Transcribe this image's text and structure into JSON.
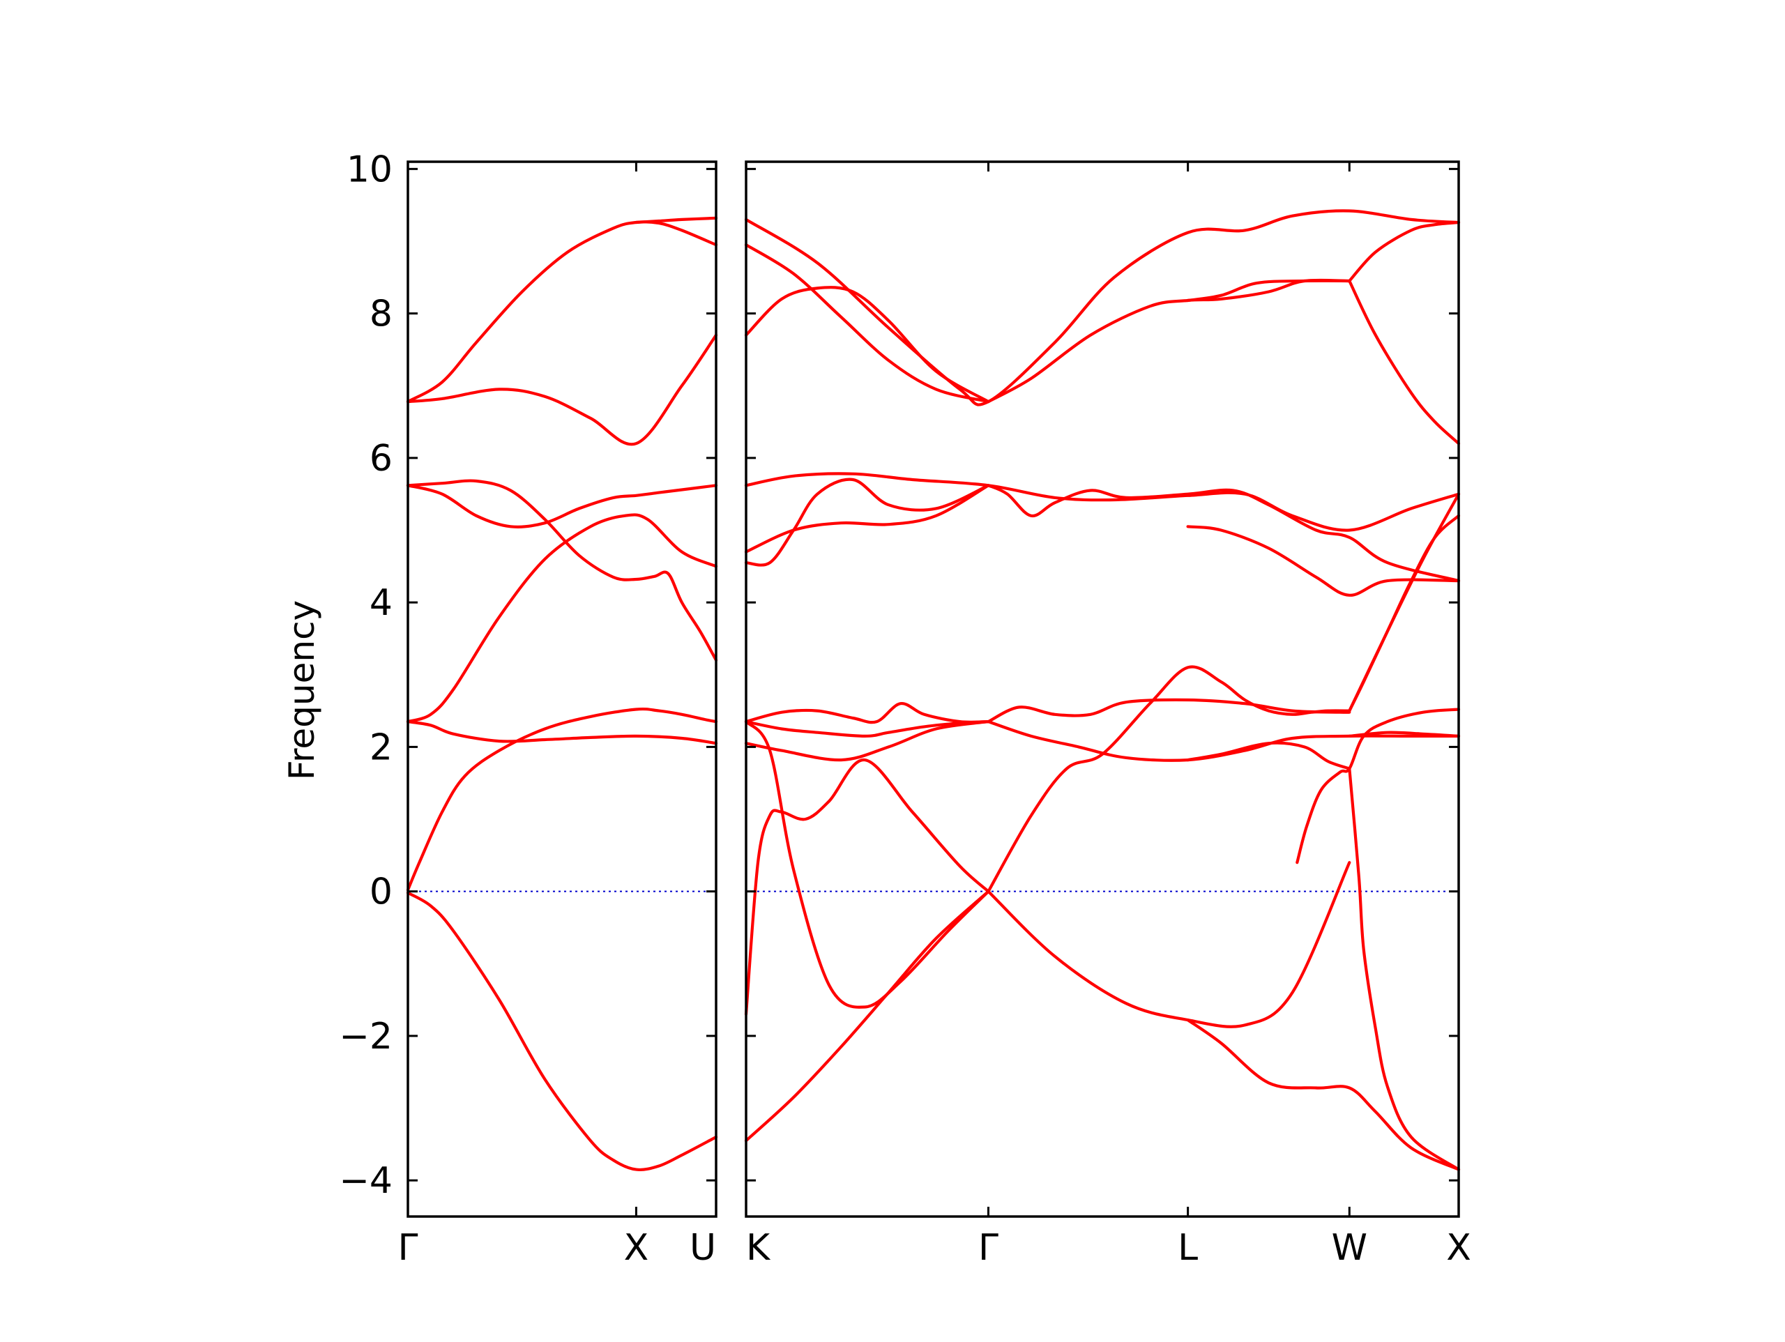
{
  "chart_data": {
    "type": "line",
    "title": "",
    "ylabel": "Frequency",
    "xlabel": "",
    "ylim": [
      -4.5,
      10.1
    ],
    "yticks": [
      -4,
      -2,
      0,
      2,
      4,
      6,
      8,
      10
    ],
    "ytick_labels": [
      "−4",
      "−2",
      "0",
      "2",
      "4",
      "6",
      "8",
      "10"
    ],
    "grid": false,
    "colors": {
      "bands": "#ff0000",
      "zero_line": "#0000cc",
      "axes": "#000000"
    },
    "panels": [
      {
        "xlim": [
          0,
          1.35
        ],
        "ticks": [
          {
            "x": 0,
            "label": "Γ"
          },
          {
            "x": 1,
            "label": "X"
          },
          {
            "x": 1.35,
            "label": "U"
          }
        ],
        "bands": [
          {
            "x": [
              0,
              0.1,
              0.2,
              0.4,
              0.6,
              0.8,
              0.9,
              1.0,
              1.1,
              1.2,
              1.35
            ],
            "y": [
              -0.02,
              -0.2,
              -0.55,
              -1.5,
              -2.6,
              -3.45,
              -3.72,
              -3.85,
              -3.8,
              -3.65,
              -3.4
            ]
          },
          {
            "x": [
              0,
              0.05,
              0.15,
              0.25,
              0.4,
              0.6,
              0.8,
              1.0,
              1.1,
              1.2,
              1.3,
              1.35
            ],
            "y": [
              0.02,
              0.4,
              1.1,
              1.6,
              1.95,
              2.25,
              2.42,
              2.52,
              2.5,
              2.45,
              2.38,
              2.35
            ]
          },
          {
            "x": [
              0,
              0.1,
              0.2,
              0.4,
              0.6,
              0.8,
              1.0,
              1.2,
              1.35
            ],
            "y": [
              2.35,
              2.3,
              2.18,
              2.08,
              2.1,
              2.13,
              2.15,
              2.12,
              2.05
            ]
          },
          {
            "x": [
              0,
              0.1,
              0.2,
              0.4,
              0.6,
              0.8,
              0.95,
              1.05,
              1.2,
              1.35
            ],
            "y": [
              2.35,
              2.45,
              2.8,
              3.8,
              4.6,
              5.05,
              5.2,
              5.15,
              4.7,
              4.5
            ]
          },
          {
            "x": [
              0,
              0.15,
              0.3,
              0.45,
              0.6,
              0.75,
              0.9,
              1.0,
              1.1,
              1.2,
              1.35
            ],
            "y": [
              5.62,
              5.5,
              5.2,
              5.05,
              5.1,
              5.3,
              5.45,
              5.48,
              5.52,
              5.56,
              5.62
            ]
          },
          {
            "x": [
              0,
              0.15,
              0.3,
              0.45,
              0.6,
              0.75,
              0.9,
              1.0,
              1.08,
              1.14,
              1.2,
              1.28,
              1.35
            ],
            "y": [
              5.62,
              5.65,
              5.68,
              5.55,
              5.15,
              4.65,
              4.35,
              4.32,
              4.36,
              4.4,
              4.0,
              3.6,
              3.2
            ]
          },
          {
            "x": [
              0,
              0.15,
              0.4,
              0.6,
              0.8,
              1.0,
              1.2,
              1.35
            ],
            "y": [
              6.78,
              6.82,
              6.95,
              6.85,
              6.55,
              6.2,
              7.0,
              7.7
            ]
          },
          {
            "x": [
              0,
              0.15,
              0.3,
              0.5,
              0.7,
              0.9,
              1.0,
              1.1,
              1.2,
              1.35
            ],
            "y": [
              6.78,
              7.05,
              7.6,
              8.3,
              8.85,
              9.18,
              9.26,
              9.25,
              9.15,
              8.95
            ]
          },
          {
            "x": [
              1.0,
              1.1,
              1.2,
              1.35
            ],
            "y": [
              9.26,
              9.28,
              9.3,
              9.32
            ]
          }
        ]
      },
      {
        "xlim": [
          0,
          3.0
        ],
        "ticks": [
          {
            "x": 0,
            "label": "K"
          },
          {
            "x": 1.02,
            "label": "Γ"
          },
          {
            "x": 1.86,
            "label": "L"
          },
          {
            "x": 2.54,
            "label": "W"
          },
          {
            "x": 3.0,
            "label": "X"
          }
        ],
        "bands": [
          {
            "x": [
              0,
              0.2,
              0.4,
              0.6,
              0.8,
              1.02
            ],
            "y": [
              -3.45,
              -2.85,
              -2.15,
              -1.4,
              -0.65,
              0.0
            ]
          },
          {
            "x": [
              0,
              0.05,
              0.1,
              0.15,
              0.25,
              0.35,
              0.5,
              0.7,
              0.9,
              1.02
            ],
            "y": [
              -1.7,
              0.4,
              1.05,
              1.1,
              1.0,
              1.25,
              1.82,
              1.1,
              0.35,
              0.0
            ]
          },
          {
            "x": [
              0,
              0.1,
              0.2,
              0.35,
              0.5,
              0.65,
              0.85,
              1.02
            ],
            "y": [
              2.35,
              1.95,
              0.3,
              -1.3,
              -1.6,
              -1.25,
              -0.55,
              0.0
            ]
          },
          {
            "x": [
              1.02,
              1.2,
              1.35,
              1.5,
              1.7,
              1.86,
              2.0,
              2.1,
              2.2,
              2.3,
              2.38,
              2.45,
              2.54
            ],
            "y": [
              0.0,
              1.05,
              1.7,
              1.9,
              2.6,
              3.1,
              2.9,
              2.65,
              2.5,
              2.45,
              2.48,
              2.5,
              2.5
            ]
          },
          {
            "x": [
              1.02,
              1.3,
              1.6,
              1.86,
              2.1,
              2.3,
              2.54
            ],
            "y": [
              0.0,
              -0.9,
              -1.55,
              -1.78,
              -1.85,
              -1.4,
              0.4
            ]
          },
          {
            "x": [
              1.86,
              2.0,
              2.2,
              2.4,
              2.54,
              2.65,
              2.8,
              3.0
            ],
            "y": [
              -1.78,
              -2.1,
              -2.65,
              -2.72,
              -2.72,
              -3.05,
              -3.55,
              -3.85
            ]
          },
          {
            "x": [
              2.54,
              2.58,
              2.6,
              2.65,
              2.7,
              2.8,
              3.0
            ],
            "y": [
              1.7,
              0.2,
              -0.8,
              -1.9,
              -2.7,
              -3.4,
              -3.85
            ]
          },
          {
            "x": [
              2.32,
              2.36,
              2.42,
              2.5,
              2.54,
              2.6,
              2.7,
              2.85,
              3.0
            ],
            "y": [
              0.4,
              0.9,
              1.4,
              1.65,
              1.7,
              2.15,
              2.35,
              2.48,
              2.52
            ]
          },
          {
            "x": [
              0,
              0.15,
              0.4,
              0.6,
              0.8,
              1.02
            ],
            "y": [
              2.05,
              1.95,
              1.82,
              2.0,
              2.25,
              2.35
            ]
          },
          {
            "x": [
              0,
              0.15,
              0.3,
              0.5,
              0.6,
              0.75,
              0.9,
              1.02
            ],
            "y": [
              2.35,
              2.25,
              2.2,
              2.15,
              2.2,
              2.28,
              2.33,
              2.35
            ]
          },
          {
            "x": [
              0,
              0.15,
              0.3,
              0.45,
              0.55,
              0.65,
              0.75,
              0.9,
              1.02
            ],
            "y": [
              2.35,
              2.48,
              2.5,
              2.4,
              2.35,
              2.6,
              2.45,
              2.35,
              2.35
            ]
          },
          {
            "x": [
              1.02,
              1.2,
              1.4,
              1.6,
              1.86,
              2.1,
              2.3,
              2.54,
              2.8,
              3.0
            ],
            "y": [
              2.35,
              2.15,
              2.0,
              1.85,
              1.82,
              1.95,
              2.12,
              2.15,
              2.15,
              2.15
            ]
          },
          {
            "x": [
              1.02,
              1.15,
              1.3,
              1.45,
              1.6,
              1.86,
              2.1,
              2.3,
              2.5,
              2.54
            ],
            "y": [
              2.35,
              2.55,
              2.45,
              2.45,
              2.62,
              2.65,
              2.6,
              2.5,
              2.48,
              2.48
            ]
          },
          {
            "x": [
              1.86,
              2.0,
              2.2,
              2.35,
              2.45,
              2.54
            ],
            "y": [
              1.82,
              1.9,
              2.05,
              2.0,
              1.8,
              1.7
            ]
          },
          {
            "x": [
              2.54,
              2.7,
              2.85,
              3.0
            ],
            "y": [
              2.15,
              2.2,
              2.18,
              2.15
            ]
          },
          {
            "x": [
              0,
              0.1,
              0.2,
              0.3,
              0.45,
              0.6,
              0.8,
              1.02
            ],
            "y": [
              4.55,
              4.55,
              5.0,
              5.5,
              5.7,
              5.35,
              5.3,
              5.62
            ]
          },
          {
            "x": [
              0,
              0.2,
              0.4,
              0.6,
              0.8,
              1.02
            ],
            "y": [
              4.7,
              5.0,
              5.1,
              5.08,
              5.2,
              5.62
            ]
          },
          {
            "x": [
              0,
              0.2,
              0.45,
              0.7,
              1.02,
              1.3,
              1.55,
              1.86,
              2.1,
              2.3,
              2.54,
              2.8,
              3.0
            ],
            "y": [
              5.62,
              5.75,
              5.78,
              5.7,
              5.62,
              5.45,
              5.42,
              5.48,
              5.5,
              5.2,
              5.0,
              5.3,
              5.5
            ]
          },
          {
            "x": [
              1.02,
              1.1,
              1.2,
              1.3,
              1.45,
              1.6,
              1.86,
              2.05,
              2.2,
              2.4,
              2.54,
              2.7,
              3.0
            ],
            "y": [
              5.62,
              5.5,
              5.2,
              5.38,
              5.55,
              5.45,
              5.5,
              5.55,
              5.35,
              5.0,
              4.9,
              4.55,
              4.3
            ]
          },
          {
            "x": [
              1.86,
              2.0,
              2.2,
              2.4,
              2.54,
              2.7,
              3.0
            ],
            "y": [
              5.05,
              5.0,
              4.75,
              4.35,
              4.1,
              4.3,
              4.3
            ]
          },
          {
            "x": [
              2.54,
              2.7,
              2.85,
              3.0
            ],
            "y": [
              2.5,
              3.6,
              4.6,
              5.5
            ]
          },
          {
            "x": [
              2.54,
              2.6,
              2.7,
              2.8,
              2.9,
              3.0
            ],
            "y": [
              2.5,
              2.9,
              3.6,
              4.3,
              4.9,
              5.2
            ]
          },
          {
            "x": [
              0,
              0.3,
              0.6,
              0.9,
              1.02,
              1.3,
              1.55,
              1.86,
              2.1,
              2.3,
              2.54,
              2.8,
              3.0
            ],
            "y": [
              9.3,
              8.7,
              7.8,
              6.95,
              6.78,
              7.6,
              8.5,
              9.12,
              9.15,
              9.35,
              9.42,
              9.3,
              9.26
            ]
          },
          {
            "x": [
              0,
              0.2,
              0.4,
              0.6,
              0.8,
              1.02
            ],
            "y": [
              8.95,
              8.55,
              7.95,
              7.35,
              6.95,
              6.78
            ]
          },
          {
            "x": [
              0,
              0.15,
              0.3,
              0.45,
              0.6,
              0.8,
              1.02
            ],
            "y": [
              7.7,
              8.2,
              8.35,
              8.3,
              7.9,
              7.2,
              6.78
            ]
          },
          {
            "x": [
              1.02,
              1.2,
              1.45,
              1.7,
              1.86,
              2.0,
              2.2,
              2.35,
              2.54
            ],
            "y": [
              6.78,
              7.1,
              7.7,
              8.1,
              8.18,
              8.2,
              8.3,
              8.45,
              8.45
            ]
          },
          {
            "x": [
              1.86,
              2.0,
              2.15,
              2.35,
              2.54
            ],
            "y": [
              8.18,
              8.25,
              8.42,
              8.45,
              8.45
            ]
          },
          {
            "x": [
              2.54,
              2.65,
              2.8,
              2.9,
              3.0
            ],
            "y": [
              8.45,
              7.7,
              6.9,
              6.5,
              6.2
            ]
          },
          {
            "x": [
              2.54,
              2.65,
              2.8,
              2.9,
              3.0
            ],
            "y": [
              8.45,
              8.85,
              9.15,
              9.23,
              9.26
            ]
          }
        ]
      }
    ]
  }
}
